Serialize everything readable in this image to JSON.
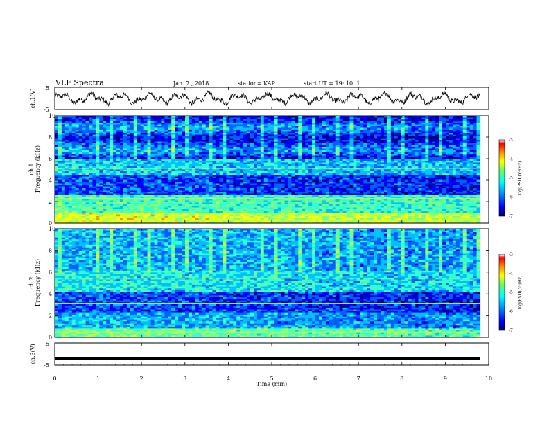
{
  "header": {
    "title": "VLF Spectra",
    "date": "Jan. 7 , 2018",
    "station": "station= KAP",
    "start": "start UT = 19: 10: 1"
  },
  "chart_data": [
    {
      "type": "line",
      "panel": "ch1-waveform",
      "ylabel": "ch.1(V)",
      "ylim": [
        -5,
        5
      ],
      "y_ticks": [
        "5",
        "-5"
      ],
      "xlim": [
        0,
        10
      ],
      "x_note": "noisy oscillating waveform, roughly -3 to +3 V, spanning 0 to 9.8 min"
    },
    {
      "type": "heatmap",
      "panel": "ch1-spectrogram",
      "ylabel": "ch.1 Frequency (kHz)",
      "ylim": [
        0,
        10
      ],
      "y_ticks": [
        "0",
        "2",
        "4",
        "6",
        "8",
        "10"
      ],
      "xlim": [
        0,
        9.8
      ],
      "colorbar": {
        "label": "log(PSD)(V²/Hz)",
        "range": [
          -7,
          -3
        ],
        "ticks": [
          "-3",
          "-4",
          "-5",
          "-6",
          "-7"
        ]
      }
    },
    {
      "type": "heatmap",
      "panel": "ch2-spectrogram",
      "ylabel": "ch.2 Frequency (kHz)",
      "ylim": [
        0,
        10
      ],
      "y_ticks": [
        "0",
        "2",
        "4",
        "6",
        "8",
        "10"
      ],
      "xlim": [
        0,
        9.8
      ],
      "colorbar": {
        "label": "log(PSD)(V²/Hz)",
        "range": [
          -7,
          -3
        ],
        "ticks": [
          "-3",
          "-4",
          "-5",
          "-6",
          "-7"
        ]
      }
    },
    {
      "type": "line",
      "panel": "ch3-waveform",
      "ylabel": "ch.3(V)",
      "ylim": [
        -5,
        5
      ],
      "y_ticks": [
        "5",
        "-5"
      ],
      "x": [
        0,
        9.8
      ],
      "y": [
        -2,
        -2
      ]
    }
  ],
  "xaxis": {
    "label": "Time (min)",
    "ticks": [
      "0",
      "1",
      "2",
      "3",
      "4",
      "5",
      "6",
      "7",
      "8",
      "9",
      "10"
    ],
    "range": [
      0,
      10
    ]
  },
  "colors": {
    "colormap": [
      "#00007f",
      "#0000ff",
      "#0060ff",
      "#00c0ff",
      "#30ffd0",
      "#70ff90",
      "#c0ff40",
      "#ffff00",
      "#ff9000",
      "#ff0000"
    ]
  }
}
